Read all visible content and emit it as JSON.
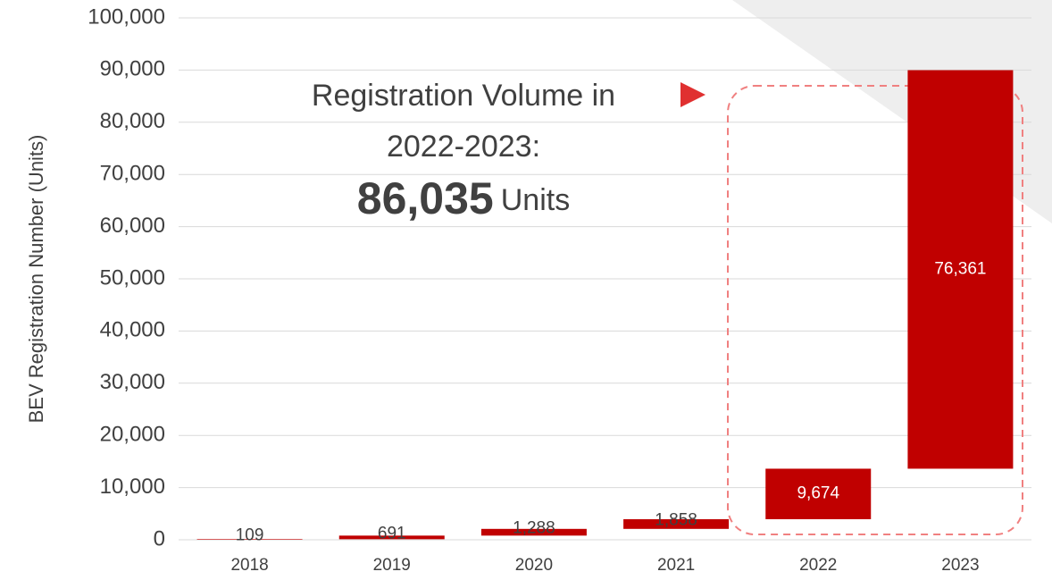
{
  "chart_data": {
    "type": "waterfall",
    "y_label": "BEV Registration Number (Units)",
    "categories": [
      "2018",
      "2019",
      "2020",
      "2021",
      "2022",
      "2023"
    ],
    "values": [
      109,
      691,
      1288,
      1858,
      9674,
      76361
    ],
    "value_labels": [
      "109",
      "691",
      "1,288",
      "1,858",
      "9,674",
      "76,361"
    ],
    "color": "#c00000",
    "ylim": [
      0,
      100000
    ],
    "yticks": [
      0,
      {
        "value": 10000,
        "label": "10,000"
      },
      {
        "value": 20000,
        "label": "20,000"
      },
      {
        "value": 30000,
        "label": "30,000"
      },
      {
        "value": 40000,
        "label": "40,000"
      },
      {
        "value": 50000,
        "label": "50,000"
      },
      {
        "value": 60000,
        "label": "60,000"
      },
      {
        "value": 70000,
        "label": "70,000"
      },
      {
        "value": 80000,
        "label": "80,000"
      },
      {
        "value": 90000,
        "label": "90,000"
      },
      {
        "value": 100000,
        "label": "100,000"
      }
    ],
    "grid": true,
    "annotation": {
      "line1": "Registration Volume in",
      "line2": "2022-2023:",
      "value": "86,035",
      "unit": "Units"
    }
  }
}
